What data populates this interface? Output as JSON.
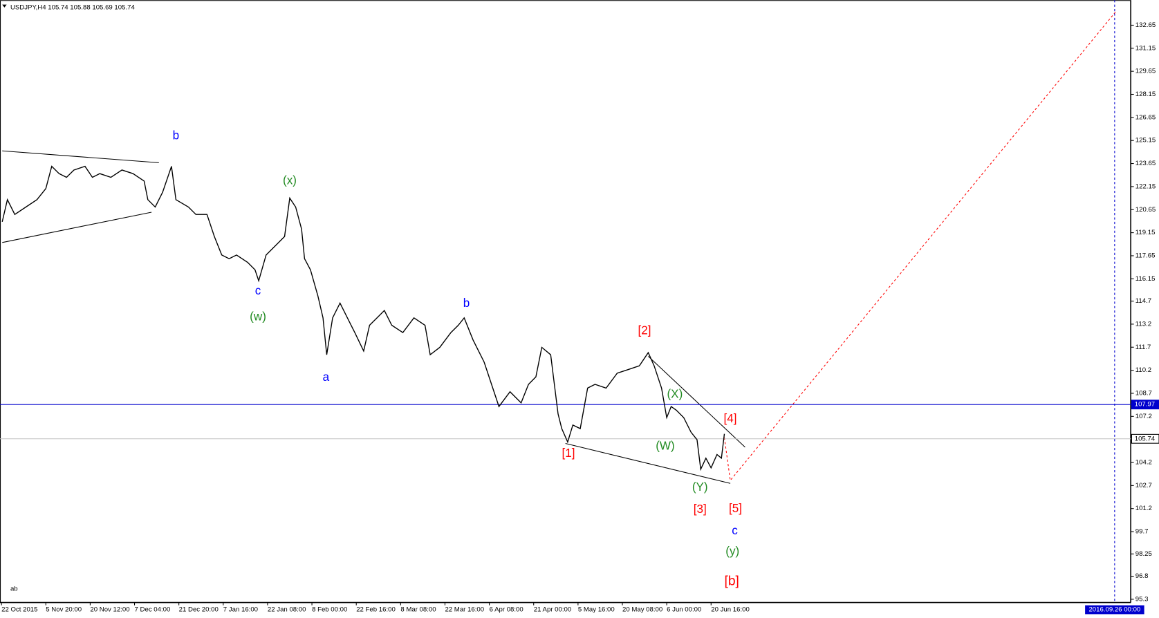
{
  "chart_data": {
    "type": "line",
    "title": "USDJPY,H4  105.74 105.88 105.69 105.74",
    "corner_text": "ab",
    "color": "#000000",
    "x": [
      3,
      10,
      20,
      35,
      50,
      62,
      70,
      80,
      90,
      100,
      115,
      125,
      135,
      150,
      165,
      180,
      195,
      200,
      210,
      220,
      232,
      238,
      255,
      265,
      280,
      290,
      300,
      310,
      320,
      335,
      345,
      350,
      360,
      375,
      385,
      392,
      400,
      408,
      412,
      420,
      430,
      437,
      442,
      450,
      460,
      470,
      480,
      492,
      500,
      510,
      520,
      530,
      545,
      560,
      575,
      582,
      595,
      610,
      620,
      628,
      640,
      655,
      665,
      675,
      690,
      705,
      715,
      725,
      733,
      745,
      750,
      755,
      760,
      768,
      775,
      785,
      795,
      805,
      820,
      835,
      850,
      865,
      877,
      885,
      895,
      902,
      908,
      915,
      925,
      935,
      943,
      948,
      955,
      962,
      970,
      976,
      980
    ],
    "values": [
      119.86,
      121.3,
      120.34,
      120.82,
      121.3,
      122.02,
      123.47,
      122.99,
      122.75,
      123.23,
      123.47,
      122.75,
      122.99,
      122.75,
      123.23,
      122.99,
      122.51,
      121.3,
      120.82,
      121.78,
      123.47,
      121.3,
      120.82,
      120.34,
      120.34,
      118.9,
      117.7,
      117.46,
      117.7,
      117.22,
      116.74,
      116.02,
      117.7,
      118.42,
      118.9,
      121.4,
      120.82,
      119.38,
      117.46,
      116.74,
      115.05,
      113.61,
      111.21,
      113.61,
      114.57,
      113.61,
      112.65,
      111.45,
      113.13,
      113.61,
      114.09,
      113.13,
      112.65,
      113.61,
      113.13,
      111.21,
      111.69,
      112.65,
      113.13,
      113.61,
      112.17,
      110.73,
      109.28,
      107.84,
      108.8,
      108.08,
      109.28,
      109.77,
      111.69,
      111.21,
      109.28,
      107.36,
      106.4,
      105.53,
      106.64,
      106.4,
      109.04,
      109.28,
      109.04,
      110.01,
      110.25,
      110.49,
      111.35,
      110.49,
      109.04,
      107.12,
      107.84,
      107.6,
      107.12,
      106.16,
      105.68,
      103.76,
      104.48,
      103.85,
      104.72,
      104.48,
      106.06
    ],
    "xlim": [
      0,
      1530
    ],
    "xticks": [
      {
        "value": 2,
        "label": "22 Oct 2015"
      },
      {
        "value": 62,
        "label": "5 Nov 20:00"
      },
      {
        "value": 122,
        "label": "20 Nov 12:00"
      },
      {
        "value": 182,
        "label": "7 Dec 04:00"
      },
      {
        "value": 242,
        "label": "21 Dec 20:00"
      },
      {
        "value": 302,
        "label": "7 Jan 16:00"
      },
      {
        "value": 362,
        "label": "22 Jan 08:00"
      },
      {
        "value": 422,
        "label": "8 Feb 00:00"
      },
      {
        "value": 482,
        "label": "22 Feb 16:00"
      },
      {
        "value": 542,
        "label": "8 Mar 08:00"
      },
      {
        "value": 602,
        "label": "22 Mar 16:00"
      },
      {
        "value": 662,
        "label": "6 Apr 08:00"
      },
      {
        "value": 722,
        "label": "21 Apr 00:00"
      },
      {
        "value": 782,
        "label": "5 May 16:00"
      },
      {
        "value": 842,
        "label": "20 May 08:00"
      },
      {
        "value": 902,
        "label": "6 Jun 00:00"
      },
      {
        "value": 962,
        "label": "20 Jun 16:00"
      }
    ],
    "vline": {
      "value": 1508,
      "label": "2016.09.26 00:00",
      "color": "#0000cd"
    },
    "ylim": [
      95.1,
      134.28
    ],
    "yticks": [
      132.65,
      131.15,
      129.65,
      128.15,
      126.65,
      125.15,
      123.65,
      122.15,
      120.65,
      119.15,
      117.65,
      116.15,
      114.7,
      113.2,
      111.7,
      110.2,
      108.7,
      107.2,
      104.2,
      102.7,
      101.2,
      99.7,
      98.25,
      96.8,
      95.3
    ],
    "hlines": [
      {
        "value": 107.97,
        "color": "#0000cd"
      },
      {
        "value": 105.74,
        "color": "#c0c0c0"
      }
    ],
    "annotations": [
      {
        "text": "b",
        "color": "#0000ff"
      },
      {
        "text": "(x)",
        "color": "#228b22"
      },
      {
        "text": "c",
        "color": "#0000ff"
      },
      {
        "text": "(w)",
        "color": "#228b22"
      },
      {
        "text": "a",
        "color": "#0000ff"
      },
      {
        "text": "b",
        "color": "#0000ff"
      },
      {
        "text": "[2]",
        "color": "#ff0000"
      },
      {
        "text": "(X)",
        "color": "#228b22"
      },
      {
        "text": "[4]",
        "color": "#ff0000"
      },
      {
        "text": "(W)",
        "color": "#228b22"
      },
      {
        "text": "[1]",
        "color": "#ff0000"
      },
      {
        "text": "(Y)",
        "color": "#228b22"
      },
      {
        "text": "[3]",
        "color": "#ff0000"
      },
      {
        "text": "[5]",
        "color": "#ff0000"
      },
      {
        "text": "c",
        "color": "#0000ff"
      },
      {
        "text": "(y)",
        "color": "#228b22"
      },
      {
        "text": "[b]",
        "color": "#ff0000"
      }
    ]
  }
}
